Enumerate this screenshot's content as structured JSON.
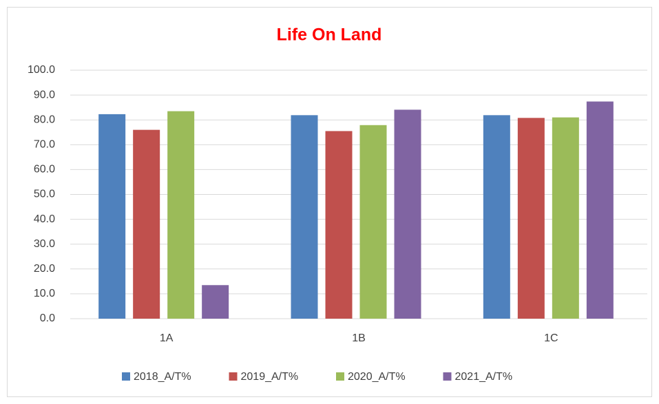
{
  "chart_data": {
    "type": "bar",
    "title": "Life On Land",
    "categories": [
      "1A",
      "1B",
      "1C"
    ],
    "series": [
      {
        "name": "2018_A/T%",
        "color": "#4f81bd",
        "values": [
          82.3,
          81.9,
          81.9
        ]
      },
      {
        "name": "2019_A/T%",
        "color": "#c0504d",
        "values": [
          76.0,
          75.5,
          80.8
        ]
      },
      {
        "name": "2020_A/T%",
        "color": "#9bbb59",
        "values": [
          83.5,
          77.9,
          81.0
        ]
      },
      {
        "name": "2021_A/T%",
        "color": "#8064a2",
        "values": [
          13.5,
          84.1,
          87.4
        ]
      }
    ],
    "ylim": [
      0,
      100
    ],
    "yticks": [
      {
        "value": 0,
        "label": "0.0"
      },
      {
        "value": 10,
        "label": "10.0"
      },
      {
        "value": 20,
        "label": "20.0"
      },
      {
        "value": 30,
        "label": "30.0"
      },
      {
        "value": 40,
        "label": "40.0"
      },
      {
        "value": 50,
        "label": "50.0"
      },
      {
        "value": 60,
        "label": "60.0"
      },
      {
        "value": 70,
        "label": "70.0"
      },
      {
        "value": 80,
        "label": "80.0"
      },
      {
        "value": 90,
        "label": "90.0"
      },
      {
        "value": 100,
        "label": "100.0"
      }
    ],
    "grid": true,
    "legend": "bottom"
  }
}
